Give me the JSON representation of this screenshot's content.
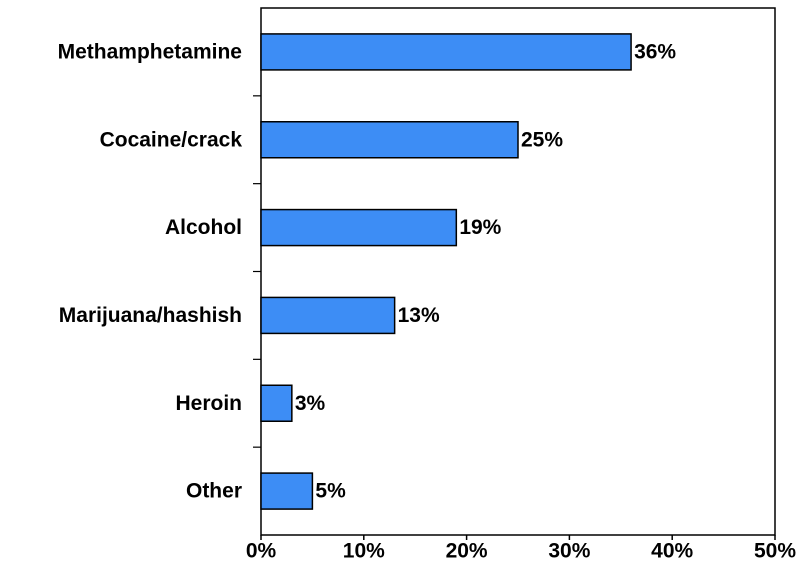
{
  "chart_data": {
    "type": "bar",
    "orientation": "horizontal",
    "categories": [
      "Methamphetamine",
      "Cocaine/crack",
      "Alcohol",
      "Marijuana/hashish",
      "Heroin",
      "Other"
    ],
    "values": [
      36,
      25,
      19,
      13,
      3,
      5
    ],
    "value_labels": [
      "36%",
      "25%",
      "19%",
      "13%",
      "3%",
      "5%"
    ],
    "color": "#3d8df5",
    "xlim": [
      0,
      50
    ],
    "xticks": [
      {
        "value": 0,
        "label": "0%"
      },
      {
        "value": 10,
        "label": "10%"
      },
      {
        "value": 20,
        "label": "20%"
      },
      {
        "value": 30,
        "label": "30%"
      },
      {
        "value": 40,
        "label": "40%"
      },
      {
        "value": 50,
        "label": "50%"
      }
    ],
    "grid": false
  }
}
